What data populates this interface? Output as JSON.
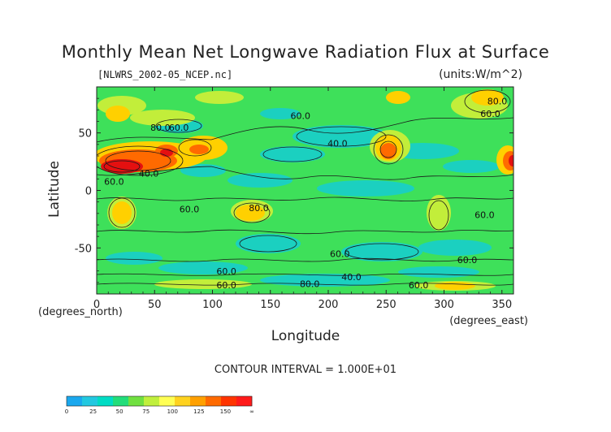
{
  "chart_data": {
    "type": "heatmap",
    "title": "Monthly Mean Net Longwave Radiation Flux at Surface",
    "file_label": "[NLWRS_2002-05_NCEP.nc]",
    "units_label": "(units:W/m^2)",
    "xlabel": "Longitude",
    "ylabel": "Latitude",
    "x_unit_label": "(degrees_east)",
    "y_unit_label": "(degrees_north)",
    "x_ticks": [
      0,
      50,
      100,
      150,
      200,
      250,
      300,
      350
    ],
    "y_ticks": [
      50,
      0,
      -50
    ],
    "xlim": [
      0,
      360
    ],
    "ylim": [
      -90,
      90
    ],
    "contour_interval_text": "CONTOUR INTERVAL = 1.000E+01",
    "contour_labels": [
      {
        "text": "80.0",
        "lon": 346,
        "lat": 75
      },
      {
        "text": "60.0",
        "lon": 340,
        "lat": 64
      },
      {
        "text": "60.0",
        "lon": 176,
        "lat": 62
      },
      {
        "text": "80.0",
        "lon": 55,
        "lat": 52
      },
      {
        "text": "60.0",
        "lon": 71,
        "lat": 52
      },
      {
        "text": "40.0",
        "lon": 208,
        "lat": 38
      },
      {
        "text": "40.0",
        "lon": 45,
        "lat": 12
      },
      {
        "text": "60.0",
        "lon": 15,
        "lat": 5
      },
      {
        "text": "60.0",
        "lon": 80,
        "lat": -19
      },
      {
        "text": "80.0",
        "lon": 140,
        "lat": -18
      },
      {
        "text": "60.0",
        "lon": 335,
        "lat": -24
      },
      {
        "text": "60.0",
        "lon": 210,
        "lat": -58
      },
      {
        "text": "60.0",
        "lon": 320,
        "lat": -63
      },
      {
        "text": "60.0",
        "lon": 112,
        "lat": -73
      },
      {
        "text": "40.0",
        "lon": 220,
        "lat": -78
      },
      {
        "text": "60.0",
        "lon": 112,
        "lat": -85
      },
      {
        "text": "80.0",
        "lon": 184,
        "lat": -84
      },
      {
        "text": "60.0",
        "lon": 278,
        "lat": -85
      }
    ],
    "colorbar": {
      "tick_labels": [
        "0",
        "25",
        "50",
        "75",
        "100",
        "125",
        "150",
        "∞"
      ],
      "colors": [
        "#1aa8ee",
        "#22c8e0",
        "#00dcc4",
        "#22dd7a",
        "#70e040",
        "#c0ef3c",
        "#ffff54",
        "#ffd21e",
        "#ffa000",
        "#ff6a00",
        "#ff3400",
        "#ff1a1a"
      ]
    },
    "colors": {
      "ocean_base": "#3ee05a",
      "low": "#1ad0c6",
      "mid": "#c2ee3a",
      "high": "#ffd000",
      "very_high": "#ff5a00",
      "max": "#e41010",
      "contour": "#1a1a1a"
    }
  }
}
